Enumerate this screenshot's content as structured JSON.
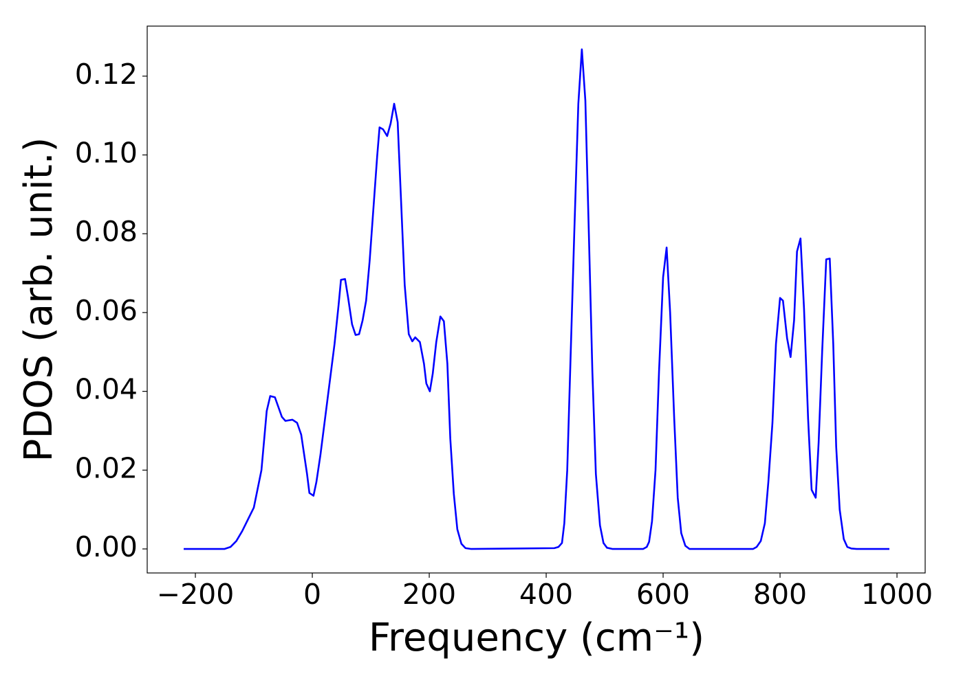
{
  "chart_data": {
    "type": "line",
    "xlabel": "Frequency (cm⁻¹)",
    "ylabel": "PDOS (arb. unit.)",
    "xlim": [
      -282.4,
      1048.2
    ],
    "ylim": [
      -0.0061,
      0.1327
    ],
    "xticks": [
      {
        "value": -200,
        "label": "−200"
      },
      0,
      200,
      400,
      600,
      800,
      1000
    ],
    "yticks": [
      {
        "value": 0,
        "label": "0.00"
      },
      {
        "value": 0.02,
        "label": "0.02"
      },
      {
        "value": 0.04,
        "label": "0.04"
      },
      {
        "value": 0.06,
        "label": "0.06"
      },
      {
        "value": 0.08,
        "label": "0.08"
      },
      {
        "value": 0.1,
        "label": "0.10"
      },
      {
        "value": 0.12,
        "label": "0.12"
      }
    ],
    "grid": false,
    "series": [
      {
        "name": "PDOS",
        "color": "#0000ff",
        "x": [
          -220,
          -150,
          -140,
          -130,
          -120,
          -110,
          -100,
          -87,
          -78,
          -72,
          -64,
          -52,
          -46,
          -34,
          -26,
          -19,
          -9,
          -5,
          2,
          7,
          14,
          26,
          38,
          45,
          49,
          56,
          61,
          68,
          74,
          80,
          86,
          92,
          98,
          111,
          115,
          121,
          128,
          134,
          140,
          146,
          158,
          165,
          171,
          176,
          184,
          191,
          195,
          201,
          206,
          212,
          219,
          225,
          231,
          236,
          242,
          248,
          255,
          262,
          271,
          414,
          421,
          427,
          431,
          436,
          441,
          448,
          455,
          461,
          467,
          473,
          479,
          485,
          492,
          498,
          504,
          513,
          566,
          572,
          576,
          581,
          587,
          593,
          600,
          606,
          612,
          619,
          625,
          631,
          638,
          645,
          754,
          760,
          767,
          774,
          780,
          787,
          793,
          800,
          805,
          812,
          818,
          824,
          829,
          835,
          841,
          848,
          854,
          861,
          866,
          872,
          879,
          885,
          891,
          896,
          902,
          909,
          915,
          922,
          931,
          987
        ],
        "values": [
          0,
          0,
          0.0005,
          0.002,
          0.0045,
          0.0075,
          0.0105,
          0.02,
          0.035,
          0.0388,
          0.0385,
          0.0335,
          0.0325,
          0.0328,
          0.032,
          0.029,
          0.019,
          0.0142,
          0.0135,
          0.017,
          0.024,
          0.038,
          0.052,
          0.062,
          0.0683,
          0.0685,
          0.064,
          0.057,
          0.0543,
          0.0545,
          0.058,
          0.063,
          0.073,
          0.0998,
          0.107,
          0.1065,
          0.1048,
          0.108,
          0.113,
          0.1083,
          0.067,
          0.0545,
          0.0527,
          0.0537,
          0.0525,
          0.047,
          0.042,
          0.04,
          0.0445,
          0.0525,
          0.059,
          0.0578,
          0.047,
          0.028,
          0.014,
          0.005,
          0.0013,
          0.0002,
          0,
          0.0002,
          0.0005,
          0.0015,
          0.0065,
          0.02,
          0.045,
          0.08,
          0.113,
          0.1268,
          0.1138,
          0.08,
          0.045,
          0.019,
          0.006,
          0.0015,
          0.0003,
          0,
          0,
          0.0005,
          0.0018,
          0.007,
          0.02,
          0.045,
          0.069,
          0.0765,
          0.06,
          0.033,
          0.013,
          0.004,
          0.0008,
          0,
          0,
          0.0005,
          0.002,
          0.0065,
          0.017,
          0.032,
          0.052,
          0.0637,
          0.063,
          0.0535,
          0.0487,
          0.058,
          0.0755,
          0.0788,
          0.061,
          0.033,
          0.015,
          0.013,
          0.027,
          0.05,
          0.0735,
          0.0737,
          0.052,
          0.026,
          0.01,
          0.0025,
          0.0005,
          0.0001,
          0,
          0
        ]
      }
    ]
  }
}
